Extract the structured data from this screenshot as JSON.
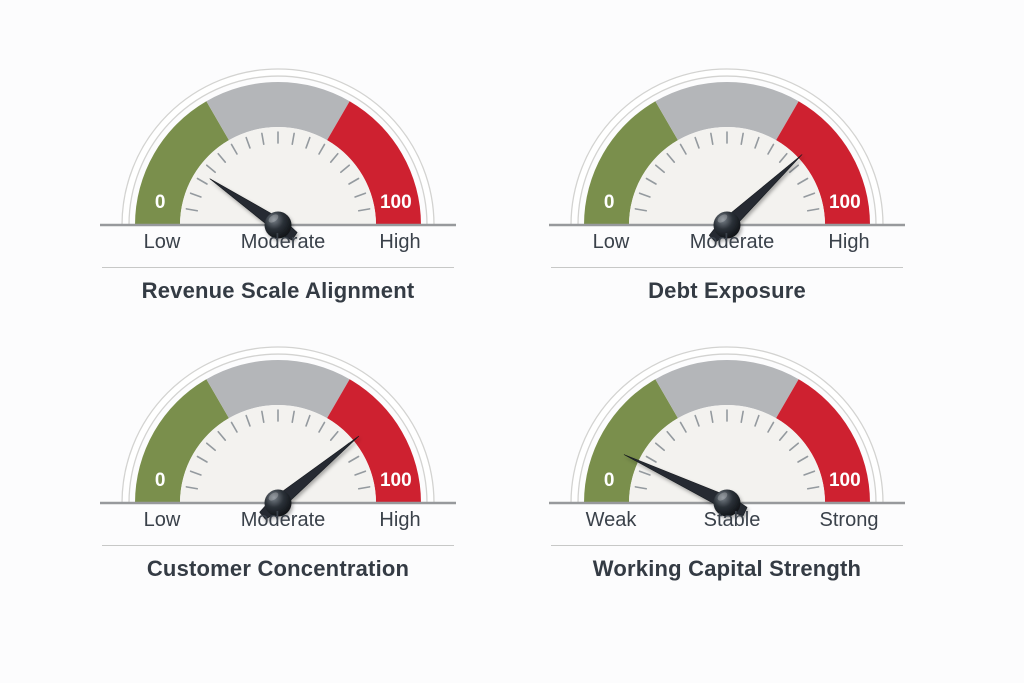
{
  "background": "#fcfcfd",
  "palette": {
    "green": "#7a8f4c",
    "gray": "#b4b6b9",
    "red": "#ce2130",
    "dial_face": "#f3f2ef",
    "ring_fill": "#ffffff",
    "ring_stroke": "#d3d3d1",
    "tick": "#949a9f",
    "baseline": "#97999c",
    "divider": "#c7c8c7",
    "needle": "#262c33",
    "needle_edge": "#14181d",
    "band_label_text": "#ffffff",
    "text": "#3a414a",
    "title_text": "#343b44"
  },
  "chart_data": [
    {
      "type": "gauge",
      "title": "Revenue Scale Alignment",
      "min": 0,
      "max": 100,
      "min_label": "0",
      "max_label": "100",
      "value": 19,
      "scale_labels": [
        "Low",
        "Moderate",
        "High"
      ],
      "segments": [
        {
          "label": "Low",
          "from": 0,
          "to": 33.3,
          "color": "#7a8f4c"
        },
        {
          "label": "Moderate",
          "from": 33.3,
          "to": 66.7,
          "color": "#b4b6b9"
        },
        {
          "label": "High",
          "from": 66.7,
          "to": 100,
          "color": "#ce2130"
        }
      ],
      "angle_range": [
        180,
        0
      ],
      "needle_extent": 0.84
    },
    {
      "type": "gauge",
      "title": "Debt Exposure",
      "min": 0,
      "max": 100,
      "min_label": "0",
      "max_label": "100",
      "value": 76,
      "scale_labels": [
        "Low",
        "Moderate",
        "High"
      ],
      "segments": [
        {
          "label": "Low",
          "from": 0,
          "to": 33.3,
          "color": "#7a8f4c"
        },
        {
          "label": "Moderate",
          "from": 33.3,
          "to": 66.7,
          "color": "#b4b6b9"
        },
        {
          "label": "High",
          "from": 66.7,
          "to": 100,
          "color": "#ce2130"
        }
      ],
      "angle_range": [
        180,
        0
      ],
      "needle_extent": 1.05
    },
    {
      "type": "gauge",
      "title": "Customer Concentration",
      "min": 0,
      "max": 100,
      "min_label": "0",
      "max_label": "100",
      "value": 78,
      "scale_labels": [
        "Low",
        "Moderate",
        "High"
      ],
      "segments": [
        {
          "label": "Low",
          "from": 0,
          "to": 33.3,
          "color": "#7a8f4c"
        },
        {
          "label": "Moderate",
          "from": 33.3,
          "to": 66.7,
          "color": "#b4b6b9"
        },
        {
          "label": "High",
          "from": 66.7,
          "to": 100,
          "color": "#ce2130"
        }
      ],
      "angle_range": [
        180,
        0
      ],
      "needle_extent": 1.07
    },
    {
      "type": "gauge",
      "title": "Working Capital Strength",
      "min": 0,
      "max": 100,
      "min_label": "0",
      "max_label": "100",
      "value": 14,
      "scale_labels": [
        "Weak",
        "Stable",
        "Strong"
      ],
      "segments": [
        {
          "label": "Weak",
          "from": 0,
          "to": 33.3,
          "color": "#7a8f4c"
        },
        {
          "label": "Stable",
          "from": 33.3,
          "to": 66.7,
          "color": "#b4b6b9"
        },
        {
          "label": "Strong",
          "from": 66.7,
          "to": 100,
          "color": "#ce2130"
        }
      ],
      "angle_range": [
        180,
        0
      ],
      "needle_extent": 1.16
    }
  ]
}
